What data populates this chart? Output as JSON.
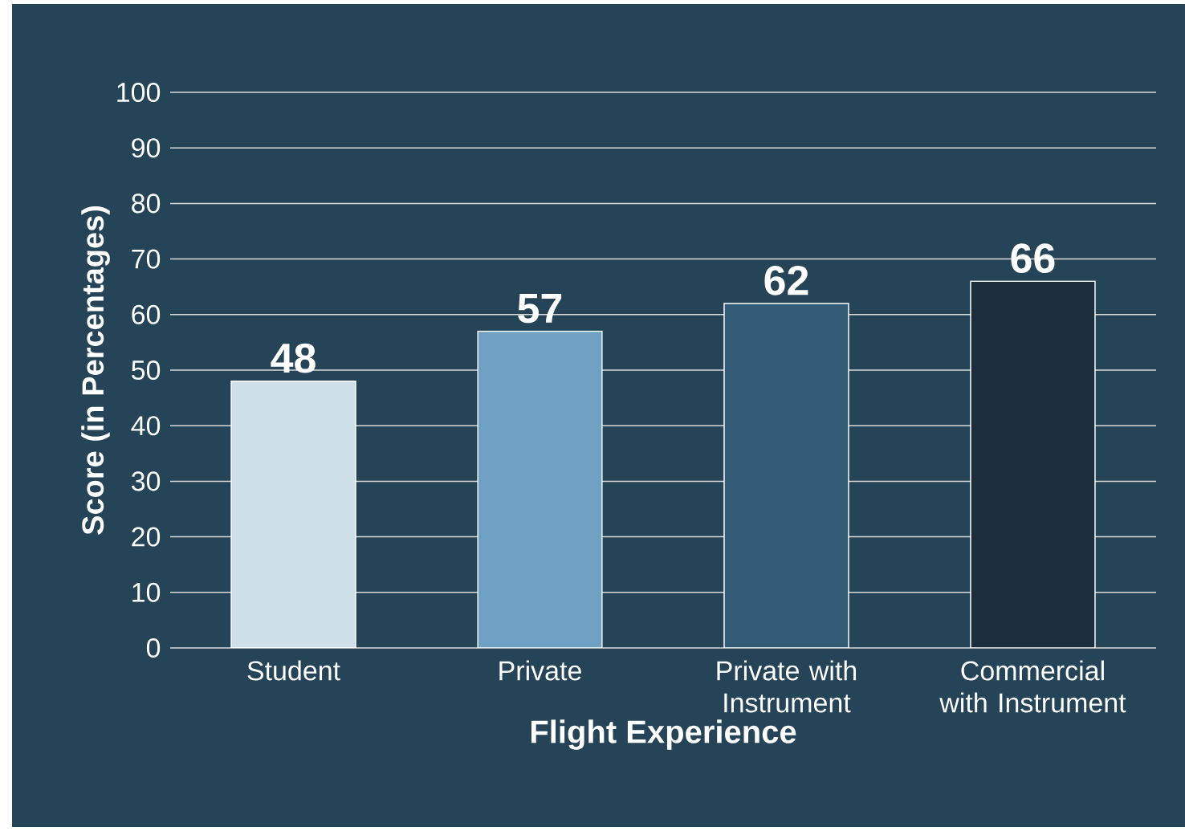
{
  "chart_data": {
    "type": "bar",
    "xlabel": "Flight Experience",
    "ylabel": "Score (in Percentages)",
    "categories": [
      "Student",
      "Private",
      "Private with Instrument",
      "Commercial with Instrument"
    ],
    "values": [
      48,
      57,
      62,
      66
    ],
    "colors": [
      "#cfdfe8",
      "#6fa2c2",
      "#335b75",
      "#1c2d3b"
    ],
    "ylim": [
      0,
      100
    ],
    "yticks": [
      0,
      10,
      20,
      30,
      40,
      50,
      60,
      70,
      80,
      90,
      100
    ],
    "grid": "y",
    "data_labels": true
  }
}
